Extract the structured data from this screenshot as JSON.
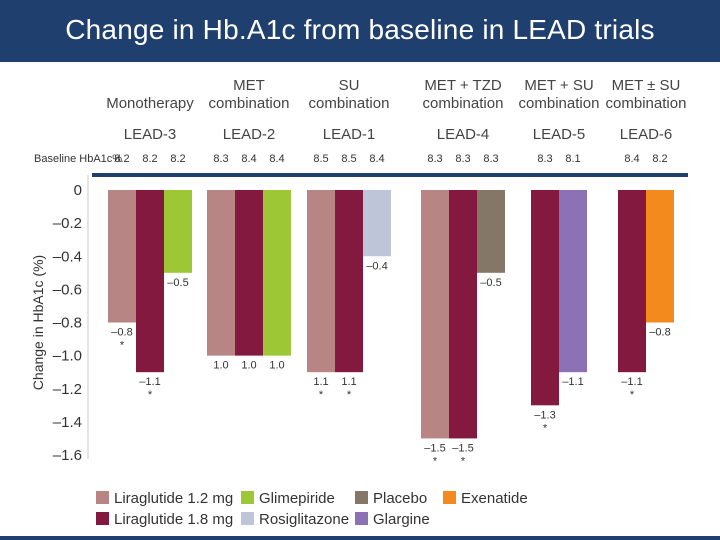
{
  "slide_title": "Change in Hb.A1c from baseline in LEAD trials",
  "colors": {
    "title_bg": "#1f3f6e",
    "Liraglutide 1.2 mg": "#b88585",
    "Liraglutide 1.8 mg": "#84193f",
    "Glimepiride": "#9dc734",
    "Rosiglitazone": "#bfc5d8",
    "Placebo": "#857767",
    "Glargine": "#8c72b4",
    "Exenatide": "#f28a1e",
    "axis_line": "#1f3f6e"
  },
  "chart_data": {
    "type": "bar",
    "ylabel": "Change in HbA1c (%)",
    "ylim": [
      -1.6,
      0
    ],
    "yticks": [
      "0",
      "–0.2",
      "–0.4",
      "–0.6",
      "–0.8",
      "–1.0",
      "–1.2",
      "–1.4",
      "–1.6"
    ],
    "baseline_label": "Baseline HbA1c%",
    "legend": [
      "Liraglutide 1.2 mg",
      "Liraglutide 1.8 mg",
      "Glimepiride",
      "Rosiglitazone",
      "Placebo",
      "Glargine",
      "Exenatide"
    ],
    "legend_placement": "bottom",
    "groups": [
      {
        "category": [
          "Monotherapy"
        ],
        "trial": "LEAD-3",
        "bars": [
          {
            "series": "Liraglutide 1.2 mg",
            "value": -0.8,
            "label": "–0.8",
            "baseline": "8.2",
            "significant": true
          },
          {
            "series": "Liraglutide 1.8 mg",
            "value": -1.1,
            "label": "–1.1",
            "baseline": "8.2",
            "significant": true
          },
          {
            "series": "Glimepiride",
            "value": -0.5,
            "label": "–0.5",
            "baseline": "8.2",
            "significant": false
          }
        ]
      },
      {
        "category": [
          "MET",
          "combination"
        ],
        "trial": "LEAD-2",
        "bars": [
          {
            "series": "Liraglutide 1.2 mg",
            "value": -1.0,
            "label": "1.0",
            "baseline": "8.3",
            "significant": false
          },
          {
            "series": "Liraglutide 1.8 mg",
            "value": -1.0,
            "label": "1.0",
            "baseline": "8.4",
            "significant": false
          },
          {
            "series": "Glimepiride",
            "value": -1.0,
            "label": "1.0",
            "baseline": "8.4",
            "significant": false
          }
        ]
      },
      {
        "category": [
          "SU",
          "combination"
        ],
        "trial": "LEAD-1",
        "bars": [
          {
            "series": "Liraglutide 1.2 mg",
            "value": -1.1,
            "label": "1.1",
            "baseline": "8.5",
            "significant": true
          },
          {
            "series": "Liraglutide 1.8 mg",
            "value": -1.1,
            "label": "1.1",
            "baseline": "8.5",
            "significant": true
          },
          {
            "series": "Rosiglitazone",
            "value": -0.4,
            "label": "–0.4",
            "baseline": "8.4",
            "significant": false
          }
        ]
      },
      {
        "category": [
          "MET + TZD",
          "combination"
        ],
        "trial": "LEAD-4",
        "bars": [
          {
            "series": "Liraglutide 1.2 mg",
            "value": -1.5,
            "label": "–1.5",
            "baseline": "8.3",
            "significant": true
          },
          {
            "series": "Liraglutide 1.8 mg",
            "value": -1.5,
            "label": "–1.5",
            "baseline": "8.3",
            "significant": true
          },
          {
            "series": "Placebo",
            "value": -0.5,
            "label": "–0.5",
            "baseline": "8.3",
            "significant": false
          }
        ]
      },
      {
        "category": [
          "MET + SU",
          "combination"
        ],
        "trial": "LEAD-5",
        "bars": [
          {
            "series": "Liraglutide 1.8 mg",
            "value": -1.3,
            "label": "–1.3",
            "baseline": "8.3",
            "significant": true
          },
          {
            "series": "Glargine",
            "value": -1.1,
            "label": "–1.1",
            "baseline": "8.1",
            "significant": false
          }
        ]
      },
      {
        "category": [
          "MET ± SU",
          "combination"
        ],
        "trial": "LEAD-6",
        "bars": [
          {
            "series": "Liraglutide 1.8 mg",
            "value": -1.1,
            "label": "–1.1",
            "baseline": "8.4",
            "significant": true
          },
          {
            "series": "Exenatide",
            "value": -0.8,
            "label": "–0.8",
            "baseline": "8.2",
            "significant": false
          }
        ]
      }
    ]
  }
}
